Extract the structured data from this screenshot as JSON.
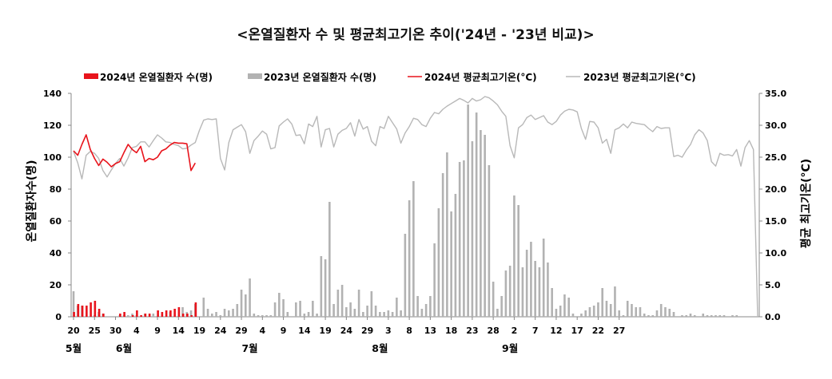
{
  "chart_data": {
    "type": "bar+line",
    "title": "<온열질환자 수 및 평균최고기온 추이('24년 - '23년 비교)>",
    "ylabel_left": "온열질환자수(명)",
    "ylabel_right": "평균 최고기온(°C)",
    "ylim_left": [
      0,
      140
    ],
    "ylim_right": [
      0,
      35
    ],
    "yticks_left": [
      "0",
      "20",
      "40",
      "60",
      "80",
      "100",
      "120",
      "140"
    ],
    "yticks_right": [
      "0.0",
      "5.0",
      "10.0",
      "15.0",
      "20.0",
      "25.0",
      "30.0",
      "35.0"
    ],
    "legend_position": "top",
    "legend": {
      "bar_2024": "2024년 온열질환자 수(명)",
      "bar_2023": "2023년 온열질환자 수(명)",
      "line_2024": "2024년 평균최고기온(°C)",
      "line_2023": "2023년 평균최고기온(°C)"
    },
    "colors": {
      "series_2024": "#e8141c",
      "bar_2023": "#b2b2b2",
      "line_2023": "#b8b8b8"
    },
    "x_start_date": "05-20",
    "x_tick_labels": [
      "20",
      "25",
      "30",
      "4",
      "9",
      "14",
      "19",
      "24",
      "29",
      "4",
      "9",
      "14",
      "19",
      "24",
      "29",
      "3",
      "8",
      "13",
      "18",
      "23",
      "28",
      "2",
      "7",
      "12",
      "17",
      "22",
      "27"
    ],
    "months": [
      "5월",
      "6월",
      "7월",
      "8월",
      "9월"
    ],
    "series": [
      {
        "name": "2023년 온열질환자 수(명)",
        "type": "bar",
        "values": [
          16,
          7,
          7,
          0,
          0,
          1,
          3,
          2,
          0,
          0,
          0,
          1,
          1,
          1,
          2,
          1,
          0,
          2,
          0,
          2,
          0,
          0,
          0,
          3,
          0,
          0,
          6,
          3,
          4,
          8,
          0,
          12,
          5,
          2,
          3,
          1,
          5,
          4,
          5,
          8,
          17,
          14,
          24,
          2,
          1,
          1,
          1,
          1,
          9,
          15,
          11,
          3,
          0,
          9,
          10,
          2,
          3,
          10,
          2,
          38,
          36,
          72,
          8,
          17,
          20,
          6,
          9,
          5,
          17,
          3,
          7,
          16,
          7,
          3,
          3,
          4,
          3,
          12,
          4,
          52,
          73,
          85,
          13,
          5,
          8,
          13,
          46,
          68,
          90,
          103,
          66,
          77,
          97,
          98,
          133,
          110,
          128,
          117,
          114,
          95,
          22,
          5,
          13,
          29,
          32,
          76,
          70,
          31,
          42,
          47,
          35,
          31,
          49,
          34,
          18,
          5,
          7,
          14,
          12,
          2,
          0,
          2,
          4,
          6,
          7,
          9,
          18,
          10,
          8,
          19,
          4,
          1,
          10,
          8,
          6,
          6,
          2,
          1,
          1,
          4,
          8,
          6,
          5,
          3,
          0,
          1,
          1,
          2,
          1,
          0,
          2,
          1,
          1,
          1,
          1,
          1,
          0,
          1,
          1
        ]
      },
      {
        "name": "2024년 온열질환자 수(명)",
        "type": "bar",
        "values": [
          3,
          8,
          7,
          7,
          9,
          10,
          5,
          2,
          0,
          0,
          0,
          2,
          3,
          0,
          1,
          4,
          1,
          2,
          2,
          0,
          4,
          3,
          4,
          4,
          5,
          6,
          2,
          2,
          1,
          9
        ]
      },
      {
        "name": "2023년 평균최고기온(°C)",
        "type": "line",
        "values": [
          25.9,
          24.1,
          21.6,
          25.3,
          25.9,
          25.6,
          24.8,
          22.9,
          21.9,
          23.0,
          24.0,
          24.8,
          23.6,
          24.9,
          26.5,
          26.7,
          27.4,
          27.4,
          26.6,
          27.6,
          28.5,
          28.0,
          27.4,
          27.3,
          27.0,
          26.8,
          26.3,
          26.4,
          26.9,
          27.3,
          29.2,
          30.8,
          31.0,
          30.9,
          31.0,
          24.8,
          23.0,
          27.3,
          29.3,
          29.7,
          30.1,
          29.0,
          25.6,
          27.6,
          28.3,
          29.1,
          28.6,
          26.3,
          26.5,
          29.9,
          30.5,
          31.0,
          30.2,
          28.4,
          28.5,
          27.1,
          30.2,
          29.8,
          31.4,
          26.6,
          29.3,
          29.5,
          26.6,
          28.6,
          29.2,
          29.5,
          30.4,
          28.3,
          30.9,
          29.4,
          29.8,
          27.5,
          26.8,
          29.8,
          29.5,
          31.4,
          30.4,
          29.4,
          27.2,
          28.8,
          29.8,
          31.1,
          30.9,
          30.1,
          29.8,
          31.1,
          32.0,
          31.8,
          32.5,
          33.0,
          33.4,
          33.8,
          34.2,
          33.9,
          33.5,
          34.2,
          33.8,
          34.0,
          34.5,
          34.3,
          33.8,
          33.2,
          32.2,
          31.4,
          26.8,
          24.9,
          29.6,
          30.1,
          31.2,
          31.6,
          30.9,
          31.2,
          31.5,
          30.5,
          30.1,
          30.6,
          31.6,
          32.2,
          32.5,
          32.4,
          32.1,
          29.5,
          27.8,
          30.6,
          30.5,
          29.6,
          27.2,
          27.8,
          25.6,
          29.3,
          29.6,
          30.2,
          29.6,
          30.5,
          30.3,
          30.2,
          30.1,
          29.5,
          29.0,
          29.8,
          29.5,
          29.6,
          29.6,
          25.1,
          25.3,
          25.0,
          26.1,
          27.0,
          28.5,
          29.3,
          28.8,
          27.6,
          24.3,
          23.6,
          25.6,
          25.3,
          25.4,
          25.2,
          26.2,
          23.6,
          26.5,
          27.6,
          26.2,
          0.0
        ]
      },
      {
        "name": "2024년 평균최고기온(°C)",
        "type": "line",
        "values": [
          26.0,
          25.3,
          27.0,
          28.5,
          26.2,
          24.8,
          23.7,
          24.7,
          24.2,
          23.5,
          24.0,
          24.3,
          25.7,
          27.0,
          26.2,
          25.7,
          26.7,
          24.3,
          24.8,
          24.6,
          25.0,
          26.0,
          26.3,
          26.9,
          27.3,
          27.2,
          27.2,
          27.1,
          22.9,
          24.1
        ]
      }
    ]
  }
}
